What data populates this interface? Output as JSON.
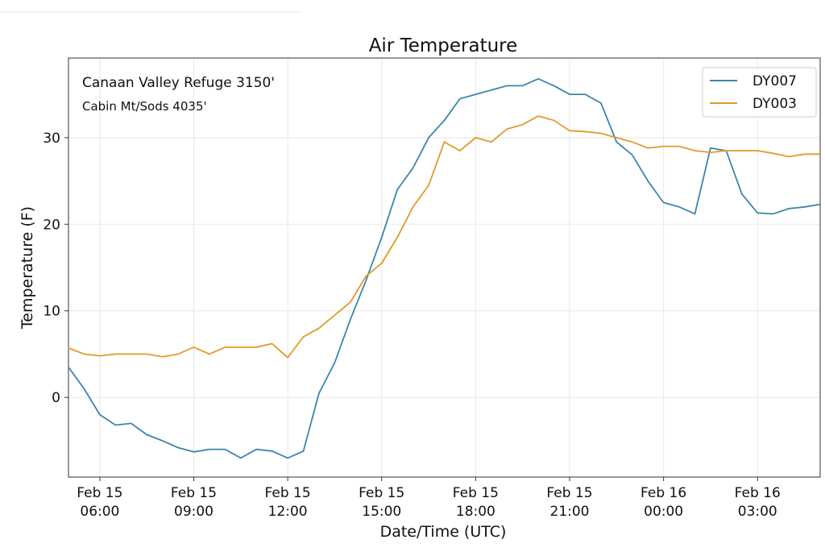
{
  "chart_data": {
    "type": "line",
    "title": "Air Temperature",
    "xlabel": "Date/Time (UTC)",
    "ylabel": "Temperature (F)",
    "annotations": [
      {
        "text": "Canaan Valley Refuge 3150'",
        "color": "#2a8ad9"
      },
      {
        "text": "Cabin Mt/Sods 4035'",
        "color": "#ec9b1d"
      }
    ],
    "x": [
      "Feb 15 05:00",
      "Feb 15 05:30",
      "Feb 15 06:00",
      "Feb 15 06:30",
      "Feb 15 07:00",
      "Feb 15 07:30",
      "Feb 15 08:00",
      "Feb 15 08:30",
      "Feb 15 09:00",
      "Feb 15 09:30",
      "Feb 15 10:00",
      "Feb 15 10:30",
      "Feb 15 11:00",
      "Feb 15 11:30",
      "Feb 15 12:00",
      "Feb 15 12:30",
      "Feb 15 13:00",
      "Feb 15 13:30",
      "Feb 15 14:00",
      "Feb 15 14:30",
      "Feb 15 15:00",
      "Feb 15 15:30",
      "Feb 15 16:00",
      "Feb 15 16:30",
      "Feb 15 17:00",
      "Feb 15 17:30",
      "Feb 15 18:00",
      "Feb 15 18:30",
      "Feb 15 19:00",
      "Feb 15 19:30",
      "Feb 15 20:00",
      "Feb 15 20:30",
      "Feb 15 21:00",
      "Feb 15 21:30",
      "Feb 15 22:00",
      "Feb 15 22:30",
      "Feb 15 23:00",
      "Feb 15 23:30",
      "Feb 16 00:00",
      "Feb 16 00:30",
      "Feb 16 01:00",
      "Feb 16 01:30",
      "Feb 16 02:00",
      "Feb 16 02:30",
      "Feb 16 03:00",
      "Feb 16 03:30",
      "Feb 16 04:00",
      "Feb 16 04:30",
      "Feb 16 05:00"
    ],
    "series": [
      {
        "name": "DY007",
        "color": "#3b86ab",
        "values": [
          3.5,
          1,
          -2,
          -3.2,
          -3,
          -4.3,
          -5,
          -5.8,
          -6.3,
          -6,
          -6,
          -7,
          -6,
          -6.2,
          -7,
          -6.2,
          0.5,
          4,
          9,
          13.5,
          18.5,
          24,
          26.5,
          30,
          32,
          34.5,
          35,
          35.5,
          36,
          36,
          36.8,
          36,
          35,
          35,
          34,
          29.5,
          28,
          25,
          22.5,
          22,
          21.2,
          28.8,
          28.5,
          23.5,
          21.3,
          21.2,
          21.8,
          22,
          22.3
        ]
      },
      {
        "name": "DY003",
        "color": "#e39a27",
        "values": [
          5.7,
          5,
          4.8,
          5,
          5,
          5,
          4.7,
          5,
          5.8,
          5,
          5.8,
          5.8,
          5.8,
          6.2,
          4.6,
          7,
          8,
          9.5,
          11,
          14,
          15.5,
          18.5,
          22,
          24.5,
          29.5,
          28.5,
          30,
          29.5,
          31,
          31.5,
          32.5,
          32,
          30.8,
          30.7,
          30.5,
          30,
          29.5,
          28.8,
          29,
          29,
          28.5,
          28.3,
          28.5,
          28.5,
          28.5,
          28.2,
          27.8,
          28.1,
          28.1
        ]
      }
    ],
    "xlim": [
      "Feb 15 05:00",
      "Feb 16 05:00"
    ],
    "xticks": [
      {
        "value": "Feb 15 06:00",
        "label": [
          "Feb 15",
          "06:00"
        ]
      },
      {
        "value": "Feb 15 09:00",
        "label": [
          "Feb 15",
          "09:00"
        ]
      },
      {
        "value": "Feb 15 12:00",
        "label": [
          "Feb 15",
          "12:00"
        ]
      },
      {
        "value": "Feb 15 15:00",
        "label": [
          "Feb 15",
          "15:00"
        ]
      },
      {
        "value": "Feb 15 18:00",
        "label": [
          "Feb 15",
          "18:00"
        ]
      },
      {
        "value": "Feb 15 21:00",
        "label": [
          "Feb 15",
          "21:00"
        ]
      },
      {
        "value": "Feb 16 00:00",
        "label": [
          "Feb 16",
          "00:00"
        ]
      },
      {
        "value": "Feb 16 03:00",
        "label": [
          "Feb 16",
          "03:00"
        ]
      }
    ],
    "ylim": [
      -9.2,
      39.2
    ],
    "yticks": [
      0,
      10,
      20,
      30
    ],
    "grid": true,
    "legend": "upper right"
  }
}
